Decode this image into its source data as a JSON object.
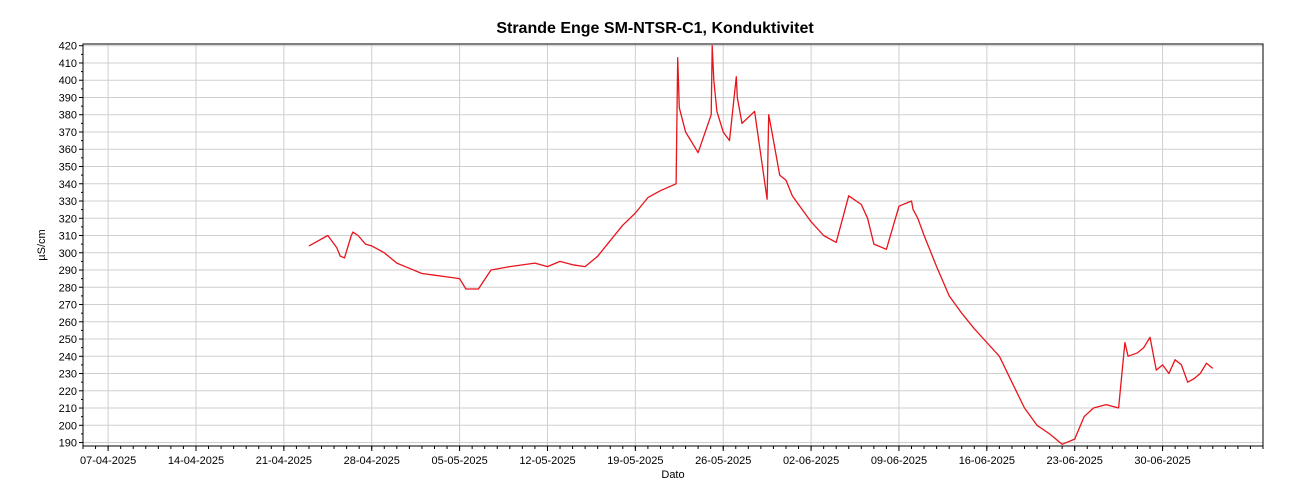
{
  "chart_data": {
    "type": "line",
    "title": "Strande Enge SM-NTSR-C1, Konduktivitet",
    "xlabel": "Dato",
    "ylabel": "µS/cm",
    "x_tick_labels": [
      "07-04-2025",
      "14-04-2025",
      "21-04-2025",
      "28-04-2025",
      "05-05-2025",
      "12-05-2025",
      "19-05-2025",
      "26-05-2025",
      "02-06-2025",
      "09-06-2025",
      "16-06-2025",
      "23-06-2025",
      "30-06-2025"
    ],
    "xlim": [
      "2025-04-05",
      "2025-07-08"
    ],
    "ylim": [
      188,
      421
    ],
    "y_ticks": [
      190,
      200,
      210,
      220,
      230,
      240,
      250,
      260,
      270,
      280,
      290,
      300,
      310,
      320,
      330,
      340,
      350,
      360,
      370,
      380,
      390,
      400,
      410,
      420
    ],
    "grid": true,
    "line_color": "#e8141b",
    "series": [
      {
        "x": [
          "2025-04-23 00:00",
          "2025-04-24 12:00",
          "2025-04-25 05:00",
          "2025-04-25 12:00",
          "2025-04-25 20:00",
          "2025-04-26 09:00",
          "2025-04-26 12:00",
          "2025-04-26 22:00",
          "2025-04-27 12:00",
          "2025-04-28 00:00",
          "2025-04-29 00:00",
          "2025-04-30 00:00",
          "2025-05-01 00:00",
          "2025-05-02 00:00",
          "2025-05-03 00:00",
          "2025-05-04 00:00",
          "2025-05-05 00:00",
          "2025-05-05 12:00",
          "2025-05-06 12:00",
          "2025-05-07 12:00",
          "2025-05-09 00:00",
          "2025-05-11 00:00",
          "2025-05-12 00:00",
          "2025-05-13 00:00",
          "2025-05-14 00:00",
          "2025-05-15 00:00",
          "2025-05-16 00:00",
          "2025-05-17 00:00",
          "2025-05-18 00:00",
          "2025-05-19 00:00",
          "2025-05-20 00:00",
          "2025-05-21 00:00",
          "2025-05-22 06:00",
          "2025-05-22 09:00",
          "2025-05-22 12:00",
          "2025-05-23 00:00",
          "2025-05-24 00:00",
          "2025-05-25 01:00",
          "2025-05-25 03:00",
          "2025-05-25 06:00",
          "2025-05-25 12:00",
          "2025-05-26 00:00",
          "2025-05-26 12:00",
          "2025-05-27 01:00",
          "2025-05-27 03:00",
          "2025-05-27 12:00",
          "2025-05-28 12:00",
          "2025-05-29 12:00",
          "2025-05-29 15:00",
          "2025-05-29 20:00",
          "2025-05-30 12:00",
          "2025-05-31 00:00",
          "2025-05-31 12:00",
          "2025-06-01 00:00",
          "2025-06-02 00:00",
          "2025-06-03 00:00",
          "2025-06-04 00:00",
          "2025-06-05 00:00",
          "2025-06-06 00:00",
          "2025-06-06 12:00",
          "2025-06-07 00:00",
          "2025-06-08 00:00",
          "2025-06-09 00:00",
          "2025-06-10 00:00",
          "2025-06-10 03:00",
          "2025-06-10 12:00",
          "2025-06-11 00:00",
          "2025-06-12 00:00",
          "2025-06-13 00:00",
          "2025-06-14 00:00",
          "2025-06-15 00:00",
          "2025-06-16 00:00",
          "2025-06-17 00:00",
          "2025-06-18 00:00",
          "2025-06-19 00:00",
          "2025-06-20 00:00",
          "2025-06-21 00:00",
          "2025-06-22 00:00",
          "2025-06-23 00:00",
          "2025-06-23 18:00",
          "2025-06-24 12:00",
          "2025-06-25 12:00",
          "2025-06-26 12:00",
          "2025-06-27 00:00",
          "2025-06-27 06:00",
          "2025-06-28 00:00",
          "2025-06-28 12:00",
          "2025-06-29 00:00",
          "2025-06-29 12:00",
          "2025-06-30 00:00",
          "2025-06-30 12:00",
          "2025-07-01 00:00",
          "2025-07-01 12:00",
          "2025-07-02 00:00",
          "2025-07-02 12:00",
          "2025-07-03 00:00",
          "2025-07-03 12:00",
          "2025-07-04 00:00"
        ],
        "values": [
          304,
          310,
          303,
          298,
          297,
          310,
          312,
          310,
          305,
          304,
          300,
          294,
          291,
          288,
          287,
          286,
          285,
          279,
          279,
          290,
          292,
          294,
          292,
          295,
          293,
          292,
          298,
          307,
          316,
          323,
          332,
          336,
          340,
          413,
          384,
          370,
          358,
          380,
          420,
          400,
          382,
          370,
          365,
          402,
          390,
          375,
          382,
          331,
          380,
          372,
          345,
          342,
          333,
          328,
          318,
          310,
          306,
          333,
          328,
          320,
          305,
          302,
          327,
          330,
          325,
          320,
          310,
          292,
          275,
          265,
          256,
          248,
          240,
          225,
          210,
          200,
          195,
          189,
          192,
          205,
          210,
          212,
          210,
          248,
          240,
          242,
          245,
          251,
          232,
          235,
          230,
          238,
          235,
          225,
          227,
          230,
          236,
          233
        ]
      }
    ]
  }
}
